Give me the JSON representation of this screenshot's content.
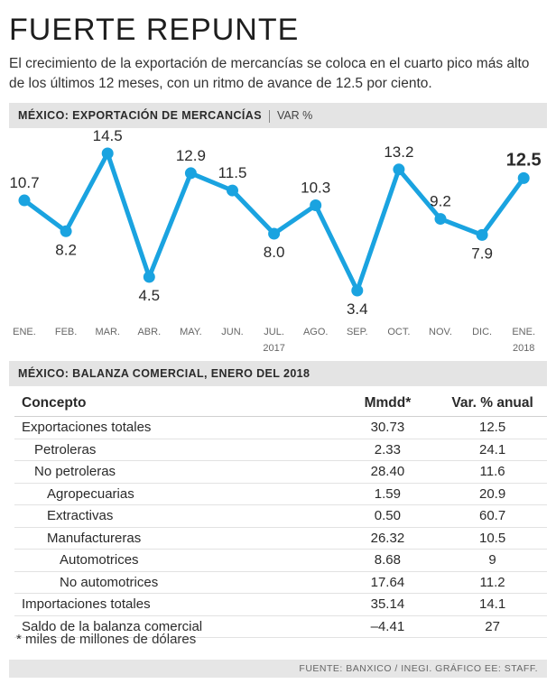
{
  "title": "FUERTE REPUNTE",
  "subtitle": "El crecimiento de la exportación de mercancías se coloca en el cuarto pico más alto de los últimos 12 meses, con un ritmo de avance de 12.5 por ciento.",
  "chart_header": {
    "label": "MÉXICO: EXPORTACIÓN DE MERCANCÍAS",
    "unit": "VAR %"
  },
  "chart_data": {
    "type": "line",
    "title": "MÉXICO: EXPORTACIÓN DE MERCANCÍAS",
    "ylabel": "VAR %",
    "categories": [
      "ENE.",
      "FEB.",
      "MAR.",
      "ABR.",
      "MAY.",
      "JUN.",
      "JUL.",
      "AGO.",
      "SEP.",
      "OCT.",
      "NOV.",
      "DIC.",
      "ENE."
    ],
    "values": [
      10.7,
      8.2,
      14.5,
      4.5,
      12.9,
      11.5,
      8.0,
      10.3,
      3.4,
      13.2,
      9.2,
      7.9,
      12.5
    ],
    "value_labels": [
      "10.7",
      "8.2",
      "14.5",
      "4.5",
      "12.9",
      "11.5",
      "8.0",
      "10.3",
      "3.4",
      "13.2",
      "9.2",
      "7.9",
      "12.5"
    ],
    "year_labels": [
      {
        "index": 6,
        "text": "2017"
      },
      {
        "index": 12,
        "text": "2018"
      }
    ],
    "ylim": [
      3.4,
      14.5
    ],
    "color": "#1aa3e0"
  },
  "table_header": {
    "label": "MÉXICO: BALANZA COMERCIAL, ENERO DEL 2018"
  },
  "table": {
    "columns": [
      "Concepto",
      "Mmdd*",
      "Var. % anual"
    ],
    "rows": [
      {
        "concept": "Exportaciones totales",
        "mmdd": "30.73",
        "var": "12.5"
      },
      {
        "concept": "Petroleras",
        "mmdd": "2.33",
        "var": "24.1"
      },
      {
        "concept": "No petroleras",
        "mmdd": "28.40",
        "var": "11.6"
      },
      {
        "concept": "Agropecuarias",
        "mmdd": "1.59",
        "var": "20.9"
      },
      {
        "concept": "Extractivas",
        "mmdd": "0.50",
        "var": "60.7"
      },
      {
        "concept": "Manufactureras",
        "mmdd": "26.32",
        "var": "10.5"
      },
      {
        "concept": "Automotrices",
        "mmdd": "8.68",
        "var": "9"
      },
      {
        "concept": "No automotrices",
        "mmdd": "17.64",
        "var": "11.2"
      },
      {
        "concept": "Importaciones totales",
        "mmdd": "35.14",
        "var": "14.1"
      },
      {
        "concept": "Saldo de la balanza comercial",
        "mmdd": "–4.41",
        "var": "27"
      }
    ]
  },
  "note": "* miles de millones de dólares",
  "source": "FUENTE: BANXICO / INEGI. GRÁFICO EE: STAFF."
}
